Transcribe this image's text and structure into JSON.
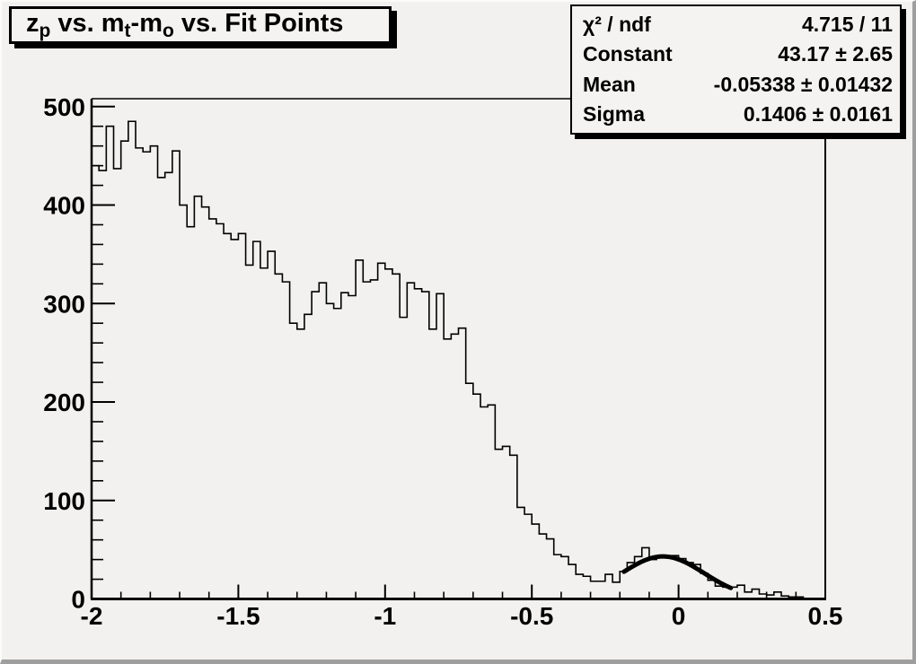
{
  "colors": {
    "canvas_bg": "#f2f1ef",
    "box_bg": "#f4f3f1",
    "line": "#000000",
    "bevel_dark": "#9e9e9e",
    "bevel_light": "#fbfbfa"
  },
  "title": {
    "full_text": "z_p vs. m_t-m_o vs. Fit Points",
    "parts": [
      {
        "text": "z",
        "sub": "p"
      },
      {
        "text": " vs. m",
        "sub": "t"
      },
      {
        "text": "-m",
        "sub": "o"
      },
      {
        "text": " vs. Fit Points",
        "sub": ""
      }
    ]
  },
  "stats": {
    "rows": [
      {
        "label": "χ² / ndf",
        "value": "4.715 / 11"
      },
      {
        "label": "Constant",
        "value": "43.17 ± 2.65"
      },
      {
        "label": "Mean",
        "value": "-0.05338 ± 0.01432"
      },
      {
        "label": "Sigma",
        "value": "0.1406 ± 0.0161"
      }
    ]
  },
  "chart_data": {
    "type": "bar",
    "subtype": "step-histogram",
    "title": "z_p vs. m_t-m_o vs. Fit Points",
    "xlabel": "",
    "ylabel": "",
    "xlim": [
      -2,
      0.5
    ],
    "ylim": [
      0,
      508
    ],
    "grid": false,
    "legend": false,
    "x_start": -2,
    "bin_width": 0.025,
    "n_bins": 100,
    "values": [
      440,
      435,
      480,
      437,
      465,
      485,
      458,
      454,
      460,
      428,
      433,
      455,
      400,
      378,
      409,
      398,
      386,
      381,
      371,
      365,
      371,
      339,
      363,
      336,
      353,
      330,
      322,
      280,
      274,
      289,
      312,
      321,
      300,
      295,
      311,
      308,
      344,
      322,
      324,
      341,
      335,
      330,
      286,
      321,
      315,
      312,
      274,
      310,
      264,
      269,
      275,
      219,
      208,
      195,
      197,
      152,
      155,
      146,
      93,
      86,
      76,
      66,
      61,
      45,
      43,
      35,
      25,
      23,
      18,
      18,
      25,
      17,
      28,
      37,
      43,
      52,
      40,
      42,
      44,
      44,
      41,
      37,
      35,
      26,
      19,
      13,
      12,
      12,
      14,
      7,
      10,
      5,
      4,
      7,
      3,
      2,
      2,
      0,
      0,
      0
    ],
    "x_major_ticks": [
      -2,
      -1.5,
      -1,
      -0.5,
      0,
      0.5
    ],
    "x_tick_labels": [
      "-2",
      "-1.5",
      "-1",
      "-0.5",
      "0",
      "0.5"
    ],
    "x_minor_step": 0.1,
    "y_major_ticks": [
      0,
      100,
      200,
      300,
      400,
      500
    ],
    "y_tick_labels": [
      "0",
      "100",
      "200",
      "300",
      "400",
      "500"
    ],
    "y_minor_step": 20,
    "fit": {
      "type": "gaussian",
      "constant": 43.17,
      "mean": -0.05338,
      "sigma": 0.1406,
      "draw_range": [
        -0.186,
        0.178
      ],
      "chi2_ndf": "4.715 / 11"
    }
  }
}
